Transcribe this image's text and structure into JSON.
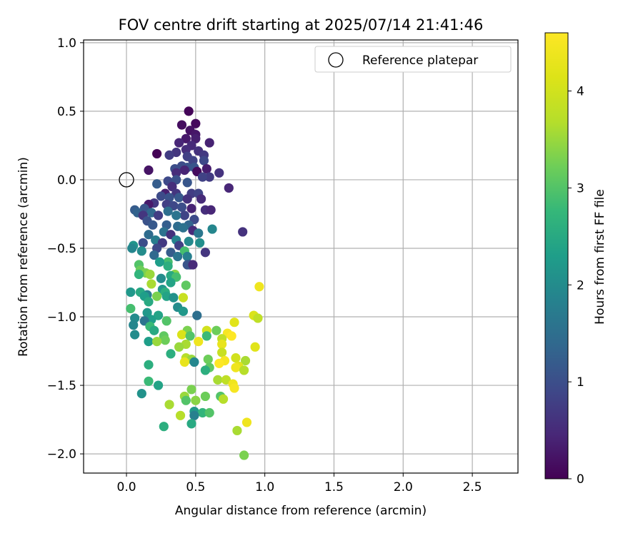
{
  "chart_data": {
    "type": "scatter",
    "title": "FOV centre drift starting at 2025/07/14 21:41:46",
    "xlabel": "Angular distance from reference (arcmin)",
    "ylabel": "Rotation from reference (arcmin)",
    "xlim": [
      -0.31,
      2.83
    ],
    "ylim": [
      -2.14,
      1.02
    ],
    "xticks": [
      0.0,
      0.5,
      1.0,
      1.5,
      2.0,
      2.5
    ],
    "xtick_labels": [
      "0.0",
      "0.5",
      "1.0",
      "1.5",
      "2.0",
      "2.5"
    ],
    "yticks": [
      1.0,
      0.5,
      0.0,
      -0.5,
      -1.0,
      -1.5,
      -2.0
    ],
    "ytick_labels": [
      "1.0",
      "0.5",
      "0.0",
      "−0.5",
      "−1.0",
      "−1.5",
      "−2.0"
    ],
    "grid": true,
    "legend": {
      "position": "top-right",
      "entries": [
        "Reference platepar"
      ]
    },
    "reference_point": {
      "x": 0.0,
      "y": 0.0
    },
    "colorbar": {
      "label": "Hours from first FF file",
      "colormap": "viridis",
      "range": [
        0,
        4.6
      ],
      "ticks": [
        0,
        1,
        2,
        3,
        4
      ],
      "tick_labels": [
        "0",
        "1",
        "2",
        "3",
        "4"
      ]
    },
    "points": [
      [
        0.45,
        0.5,
        0.05
      ],
      [
        0.5,
        0.41,
        0.1
      ],
      [
        0.4,
        0.4,
        0.15
      ],
      [
        0.46,
        0.36,
        0.2
      ],
      [
        0.5,
        0.33,
        0.25
      ],
      [
        0.43,
        0.3,
        0.3
      ],
      [
        0.5,
        0.3,
        0.35
      ],
      [
        0.6,
        0.27,
        0.4
      ],
      [
        0.38,
        0.27,
        0.45
      ],
      [
        0.47,
        0.25,
        0.5
      ],
      [
        0.43,
        0.22,
        0.55
      ],
      [
        0.52,
        0.21,
        0.6
      ],
      [
        0.36,
        0.2,
        0.65
      ],
      [
        0.22,
        0.19,
        0.02
      ],
      [
        0.56,
        0.18,
        0.7
      ],
      [
        0.31,
        0.18,
        0.75
      ],
      [
        0.44,
        0.17,
        0.8
      ],
      [
        0.48,
        0.14,
        0.85
      ],
      [
        0.56,
        0.14,
        0.9
      ],
      [
        0.4,
        0.1,
        0.95
      ],
      [
        0.35,
        0.08,
        1.0
      ],
      [
        0.44,
        0.09,
        1.05
      ],
      [
        0.49,
        0.09,
        1.1
      ],
      [
        0.51,
        0.06,
        0.12
      ],
      [
        0.16,
        0.07,
        0.22
      ],
      [
        0.58,
        0.08,
        0.32
      ],
      [
        0.42,
        0.07,
        0.42
      ],
      [
        0.36,
        0.05,
        0.52
      ],
      [
        0.67,
        0.05,
        0.62
      ],
      [
        0.6,
        0.02,
        0.72
      ],
      [
        0.55,
        0.02,
        0.82
      ],
      [
        0.3,
        -0.01,
        0.92
      ],
      [
        0.36,
        0.0,
        1.02
      ],
      [
        0.44,
        -0.02,
        1.12
      ],
      [
        0.22,
        -0.03,
        1.22
      ],
      [
        0.33,
        -0.05,
        0.55
      ],
      [
        0.74,
        -0.06,
        0.45
      ],
      [
        0.28,
        -0.1,
        0.35
      ],
      [
        0.36,
        -0.1,
        0.65
      ],
      [
        0.47,
        -0.1,
        0.75
      ],
      [
        0.52,
        -0.1,
        0.85
      ],
      [
        0.25,
        -0.12,
        0.95
      ],
      [
        0.31,
        -0.13,
        1.05
      ],
      [
        0.38,
        -0.13,
        1.15
      ],
      [
        0.44,
        -0.14,
        0.6
      ],
      [
        0.54,
        -0.14,
        0.5
      ],
      [
        0.2,
        -0.17,
        0.7
      ],
      [
        0.29,
        -0.18,
        0.8
      ],
      [
        0.16,
        -0.18,
        0.3
      ],
      [
        0.34,
        -0.19,
        0.9
      ],
      [
        0.4,
        -0.2,
        1.0
      ],
      [
        0.47,
        -0.21,
        0.4
      ],
      [
        0.13,
        -0.21,
        1.1
      ],
      [
        0.06,
        -0.22,
        1.2
      ],
      [
        0.57,
        -0.22,
        0.55
      ],
      [
        0.08,
        -0.24,
        1.3
      ],
      [
        0.18,
        -0.24,
        1.4
      ],
      [
        0.3,
        -0.23,
        1.5
      ],
      [
        0.12,
        -0.26,
        0.65
      ],
      [
        0.23,
        -0.26,
        0.75
      ],
      [
        0.42,
        -0.26,
        0.85
      ],
      [
        0.36,
        -0.26,
        1.6
      ],
      [
        0.61,
        -0.22,
        0.45
      ],
      [
        0.49,
        -0.29,
        0.95
      ],
      [
        0.15,
        -0.3,
        1.05
      ],
      [
        0.19,
        -0.33,
        1.15
      ],
      [
        0.29,
        -0.33,
        1.25
      ],
      [
        0.45,
        -0.33,
        1.35
      ],
      [
        0.37,
        -0.34,
        1.45
      ],
      [
        0.41,
        -0.35,
        1.55
      ],
      [
        0.84,
        -0.38,
        0.6
      ],
      [
        0.62,
        -0.36,
        1.9
      ],
      [
        0.16,
        -0.4,
        1.45
      ],
      [
        0.27,
        -0.38,
        1.55
      ],
      [
        0.48,
        -0.37,
        0.5
      ],
      [
        0.52,
        -0.39,
        1.65
      ],
      [
        0.32,
        -0.4,
        0.6
      ],
      [
        0.21,
        -0.44,
        1.75
      ],
      [
        0.36,
        -0.44,
        1.85
      ],
      [
        0.45,
        -0.45,
        1.95
      ],
      [
        0.26,
        -0.46,
        0.7
      ],
      [
        0.12,
        -0.46,
        1.0
      ],
      [
        0.53,
        -0.46,
        2.05
      ],
      [
        0.05,
        -0.48,
        2.15
      ],
      [
        0.38,
        -0.48,
        0.8
      ],
      [
        0.04,
        -0.5,
        1.9
      ],
      [
        0.22,
        -0.5,
        0.9
      ],
      [
        0.11,
        -0.52,
        2.0
      ],
      [
        0.42,
        -0.52,
        2.9
      ],
      [
        0.57,
        -0.53,
        0.65
      ],
      [
        0.32,
        -0.53,
        1.2
      ],
      [
        0.2,
        -0.55,
        1.4
      ],
      [
        0.37,
        -0.56,
        1.6
      ],
      [
        0.44,
        -0.56,
        1.8
      ],
      [
        0.3,
        -0.6,
        2.9
      ],
      [
        0.24,
        -0.6,
        2.3
      ],
      [
        0.3,
        -0.63,
        2.6
      ],
      [
        0.46,
        -0.62,
        0.75
      ],
      [
        0.44,
        -0.62,
        1.1
      ],
      [
        0.48,
        -0.62,
        0.5
      ],
      [
        0.09,
        -0.62,
        3.0
      ],
      [
        0.1,
        -0.66,
        3.2
      ],
      [
        0.14,
        -0.68,
        3.3
      ],
      [
        0.35,
        -0.69,
        3.4
      ],
      [
        0.09,
        -0.69,
        2.7
      ],
      [
        0.17,
        -0.69,
        3.5
      ],
      [
        0.32,
        -0.7,
        2.5
      ],
      [
        0.36,
        -0.71,
        2.9
      ],
      [
        0.25,
        -0.72,
        2.0
      ],
      [
        0.32,
        -0.75,
        2.4
      ],
      [
        0.18,
        -0.76,
        3.6
      ],
      [
        0.43,
        -0.77,
        3.1
      ],
      [
        0.26,
        -0.8,
        2.2
      ],
      [
        0.28,
        -0.82,
        2.6
      ],
      [
        0.1,
        -0.82,
        2.5
      ],
      [
        0.03,
        -0.82,
        2.2
      ],
      [
        0.15,
        -0.84,
        1.8
      ],
      [
        0.22,
        -0.85,
        3.3
      ],
      [
        0.29,
        -0.85,
        2.4
      ],
      [
        0.41,
        -0.86,
        3.9
      ],
      [
        0.13,
        -0.85,
        2.3
      ],
      [
        0.34,
        -0.86,
        2.1
      ],
      [
        0.16,
        -0.89,
        2.5
      ],
      [
        0.37,
        -0.93,
        2.0
      ],
      [
        0.03,
        -0.94,
        2.9
      ],
      [
        0.15,
        -0.97,
        2.2
      ],
      [
        0.41,
        -0.96,
        2.2
      ],
      [
        0.23,
        -0.99,
        2.4
      ],
      [
        0.06,
        -1.01,
        2.0
      ],
      [
        0.18,
        -1.02,
        2.3
      ],
      [
        0.13,
        -1.03,
        1.6
      ],
      [
        0.29,
        -1.03,
        3.0
      ],
      [
        0.51,
        -0.99,
        1.5
      ],
      [
        0.78,
        -1.04,
        4.2
      ],
      [
        0.92,
        -0.99,
        4.1
      ],
      [
        0.95,
        -1.01,
        3.8
      ],
      [
        0.96,
        -0.78,
        4.4
      ],
      [
        0.65,
        -1.1,
        3.2
      ],
      [
        0.05,
        -1.06,
        1.9
      ],
      [
        0.17,
        -1.07,
        2.8
      ],
      [
        0.2,
        -1.1,
        2.5
      ],
      [
        0.44,
        -1.1,
        3.3
      ],
      [
        0.58,
        -1.1,
        4.0
      ],
      [
        0.73,
        -1.12,
        4.5
      ],
      [
        0.76,
        -1.14,
        4.6
      ],
      [
        0.06,
        -1.13,
        2.0
      ],
      [
        0.4,
        -1.13,
        4.1
      ],
      [
        0.27,
        -1.14,
        3.1
      ],
      [
        0.46,
        -1.14,
        3.0
      ],
      [
        0.58,
        -1.14,
        2.8
      ],
      [
        0.69,
        -1.16,
        3.8
      ],
      [
        0.28,
        -1.17,
        3.2
      ],
      [
        0.52,
        -1.18,
        4.4
      ],
      [
        0.16,
        -1.18,
        2.3
      ],
      [
        0.22,
        -1.18,
        3.5
      ],
      [
        0.43,
        -1.2,
        3.6
      ],
      [
        0.69,
        -1.2,
        4.3
      ],
      [
        0.38,
        -1.22,
        3.5
      ],
      [
        0.93,
        -1.22,
        4.2
      ],
      [
        0.69,
        -1.26,
        3.9
      ],
      [
        0.32,
        -1.27,
        2.6
      ],
      [
        0.43,
        -1.3,
        3.7
      ],
      [
        0.79,
        -1.3,
        4.0
      ],
      [
        0.47,
        -1.31,
        3.5
      ],
      [
        0.59,
        -1.31,
        3.2
      ],
      [
        0.86,
        -1.32,
        3.6
      ],
      [
        0.42,
        -1.33,
        4.3
      ],
      [
        0.49,
        -1.33,
        1.9
      ],
      [
        0.71,
        -1.32,
        4.5
      ],
      [
        0.67,
        -1.34,
        4.6
      ],
      [
        0.81,
        -1.36,
        4.2
      ],
      [
        0.16,
        -1.35,
        2.6
      ],
      [
        0.6,
        -1.37,
        3.1
      ],
      [
        0.79,
        -1.37,
        4.4
      ],
      [
        0.57,
        -1.39,
        2.6
      ],
      [
        0.85,
        -1.39,
        3.7
      ],
      [
        0.66,
        -1.46,
        3.6
      ],
      [
        0.72,
        -1.46,
        3.8
      ],
      [
        0.16,
        -1.47,
        2.8
      ],
      [
        0.77,
        -1.49,
        4.4
      ],
      [
        0.23,
        -1.5,
        2.4
      ],
      [
        0.78,
        -1.52,
        4.5
      ],
      [
        0.47,
        -1.53,
        3.3
      ],
      [
        0.11,
        -1.56,
        2.1
      ],
      [
        0.42,
        -1.58,
        3.5
      ],
      [
        0.57,
        -1.58,
        3.2
      ],
      [
        0.68,
        -1.58,
        3.0
      ],
      [
        0.7,
        -1.6,
        3.7
      ],
      [
        0.43,
        -1.61,
        3.0
      ],
      [
        0.5,
        -1.61,
        3.4
      ],
      [
        0.31,
        -1.64,
        3.6
      ],
      [
        0.49,
        -1.69,
        2.2
      ],
      [
        0.55,
        -1.7,
        2.7
      ],
      [
        0.6,
        -1.7,
        3.0
      ],
      [
        0.39,
        -1.72,
        3.7
      ],
      [
        0.49,
        -1.72,
        1.8
      ],
      [
        0.87,
        -1.77,
        4.4
      ],
      [
        0.47,
        -1.78,
        2.5
      ],
      [
        0.27,
        -1.8,
        2.6
      ],
      [
        0.8,
        -1.83,
        3.6
      ],
      [
        0.85,
        -2.01,
        3.3
      ]
    ]
  }
}
